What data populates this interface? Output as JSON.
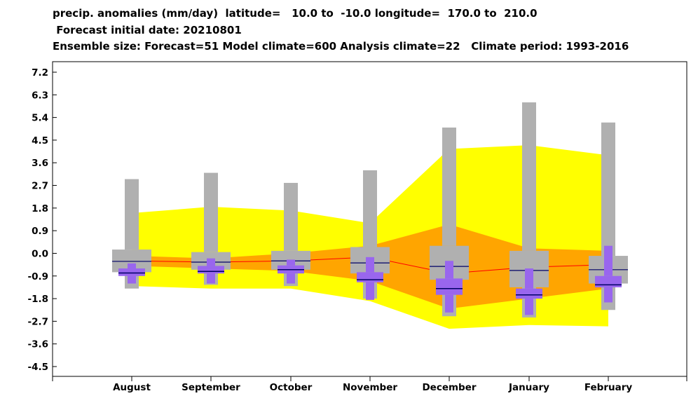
{
  "title_lines": [
    "precip. anomalies (mm/day)  latitude=   10.0 to  -10.0 longitude=  170.0 to  210.0",
    " Forecast initial date: 20210801",
    "Ensemble size: Forecast=51 Model climate=600 Analysis climate=22   Climate period: 1993-2016"
  ],
  "colors": {
    "outer_band": "#ffff00",
    "inner_band": "#ffa500",
    "climate_box": "#b0b0b0",
    "forecast_box": "#9966ee",
    "median_line": "#000066",
    "mean_line": "#ff0000"
  },
  "chart_data": {
    "type": "boxplot",
    "categories": [
      "August",
      "September",
      "October",
      "November",
      "December",
      "January",
      "February"
    ],
    "y_ticks": [
      "7.2",
      "6.3",
      "5.4",
      "4.5",
      "3.6",
      "2.7",
      "1.8",
      "0.9",
      "0.0",
      "-0.9",
      "-1.8",
      "-2.7",
      "-3.6",
      "-4.5"
    ],
    "y_tick_values": [
      7.2,
      6.3,
      5.4,
      4.5,
      3.6,
      2.7,
      1.8,
      0.9,
      0.0,
      -0.9,
      -1.8,
      -2.7,
      -3.6,
      -4.5
    ],
    "ylim": [
      -4.8,
      7.6
    ],
    "outer_band": {
      "upper": [
        1.6,
        1.85,
        1.7,
        1.2,
        4.15,
        4.3,
        3.9
      ],
      "lower": [
        -1.3,
        -1.4,
        -1.4,
        -1.9,
        -3.0,
        -2.85,
        -2.9
      ]
    },
    "inner_band": {
      "upper": [
        -0.1,
        -0.2,
        0.0,
        0.3,
        1.15,
        0.2,
        0.1
      ],
      "lower": [
        -0.5,
        -0.6,
        -0.7,
        -1.1,
        -2.2,
        -1.8,
        -1.4
      ]
    },
    "mean_line": [
      -0.3,
      -0.35,
      -0.3,
      -0.15,
      -0.8,
      -0.55,
      -0.45
    ],
    "model_climate": {
      "min": [
        -1.4,
        -1.25,
        -1.3,
        -1.8,
        -2.5,
        -2.55,
        -2.25
      ],
      "p10": [
        -0.75,
        -0.65,
        -0.65,
        -0.8,
        -1.05,
        -1.35,
        -1.2
      ],
      "median": [
        -0.32,
        -0.35,
        -0.3,
        -0.38,
        -0.52,
        -0.68,
        -0.65
      ],
      "p90": [
        0.15,
        0.05,
        0.1,
        0.25,
        0.3,
        0.1,
        -0.1
      ],
      "max": [
        2.95,
        3.2,
        2.8,
        3.3,
        5.0,
        6.0,
        5.2
      ]
    },
    "forecast": {
      "min": [
        -1.2,
        -1.2,
        -1.2,
        -1.85,
        -2.35,
        -2.45,
        -1.95
      ],
      "p10": [
        -0.9,
        -0.8,
        -0.8,
        -1.15,
        -1.65,
        -1.8,
        -1.35
      ],
      "median": [
        -0.78,
        -0.72,
        -0.65,
        -1.05,
        -1.4,
        -1.65,
        -1.25
      ],
      "p90": [
        -0.6,
        -0.5,
        -0.48,
        -0.75,
        -1.0,
        -1.4,
        -0.9
      ],
      "max": [
        -0.4,
        -0.2,
        -0.25,
        -0.15,
        -0.3,
        -0.6,
        0.3
      ]
    }
  }
}
